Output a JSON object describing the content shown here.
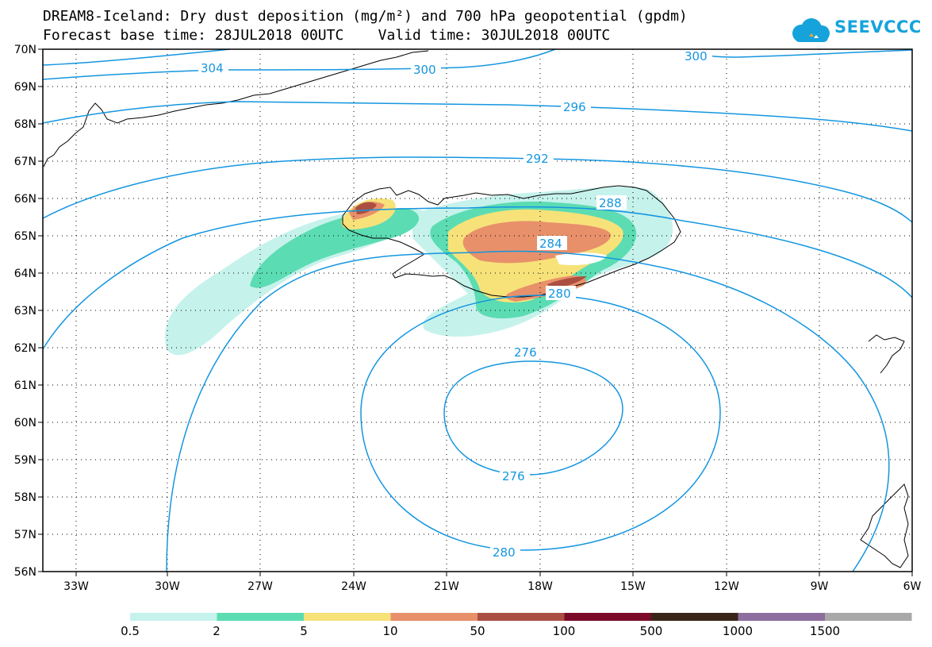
{
  "header": {
    "title_line1": "DREAM8-Iceland: Dry dust deposition (mg/m²) and 700 hPa geopotential (gpdm)",
    "title_line2": "Forecast base time: 28JUL2018 00UTC    Valid time: 30JUL2018 00UTC",
    "logo_text": "SEEVCCC"
  },
  "map": {
    "lat_labels": [
      "70N",
      "69N",
      "68N",
      "67N",
      "66N",
      "65N",
      "64N",
      "63N",
      "62N",
      "61N",
      "60N",
      "59N",
      "58N",
      "57N",
      "56N"
    ],
    "lon_labels": [
      "33W",
      "30W",
      "27W",
      "24W",
      "21W",
      "18W",
      "15W",
      "12W",
      "9W",
      "6W"
    ],
    "contour_labels": {
      "c304": "304",
      "c300a": "300",
      "c300b": "300",
      "c296": "296",
      "c292": "292",
      "c288": "288",
      "c284": "284",
      "c280a": "280",
      "c276a": "276",
      "c276b": "276",
      "c280b": "280"
    },
    "colors": {
      "contour": "#1496e0",
      "frame": "#000000"
    }
  },
  "legend": {
    "labels": [
      "0.5",
      "2",
      "5",
      "10",
      "50",
      "100",
      "500",
      "1000",
      "1500"
    ],
    "colors": [
      "#c6f2ec",
      "#5cdcb2",
      "#f7e27a",
      "#e8906a",
      "#ab4f42",
      "#7a0a28",
      "#3a2418",
      "#8d6e9e",
      "#a8a8a8"
    ]
  }
}
